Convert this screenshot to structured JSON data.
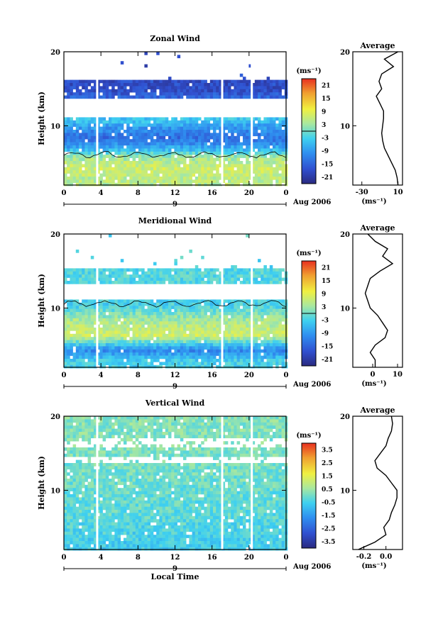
{
  "chart_data": [
    {
      "type": "heatmap",
      "title": "Zonal Wind",
      "ylabel": "Height (km)",
      "xlabel": "",
      "xlim": [
        0,
        24
      ],
      "ylim": [
        2,
        20
      ],
      "x_ticks": [
        "0",
        "4",
        "8",
        "12",
        "16",
        "20",
        "0"
      ],
      "y_ticks": [
        "10",
        "20"
      ],
      "date_ticks": [
        "9"
      ],
      "date_label": "Aug 2006",
      "colorbar": {
        "unit": "(ms⁻¹)",
        "ticks": [
          "21",
          "15",
          "9",
          "3",
          "-3",
          "-9",
          "-15",
          "-21"
        ],
        "min": -24,
        "max": 24
      },
      "profile_bands": [
        {
          "height": 3.0,
          "value": 5
        },
        {
          "height": 4.5,
          "value": 7
        },
        {
          "height": 6.0,
          "value": 3
        },
        {
          "height": 7.0,
          "value": -6
        },
        {
          "height": 8.5,
          "value": -14
        },
        {
          "height": 10.0,
          "value": -9
        },
        {
          "height": 11.0,
          "value": -4
        },
        {
          "height": 15.0,
          "value": -18
        }
      ],
      "average": {
        "title": "Average",
        "xlabel": "(ms⁻¹)",
        "x_ticks": [
          "-30",
          "10"
        ],
        "xlim": [
          -40,
          15
        ],
        "heights": [
          2,
          3,
          4,
          5,
          6,
          7,
          8,
          9,
          10,
          11,
          12,
          13,
          14,
          15,
          16,
          17,
          18,
          19,
          20
        ],
        "values": [
          10,
          9,
          7,
          3,
          -1,
          -5,
          -7,
          -8,
          -7,
          -6,
          -6,
          -10,
          -14,
          -8,
          -11,
          -8,
          5,
          -5,
          10
        ]
      }
    },
    {
      "type": "heatmap",
      "title": "Meridional Wind",
      "ylabel": "Height (km)",
      "xlabel": "",
      "xlim": [
        0,
        24
      ],
      "ylim": [
        2,
        20
      ],
      "x_ticks": [
        "0",
        "4",
        "8",
        "12",
        "16",
        "20",
        "0"
      ],
      "y_ticks": [
        "10",
        "20"
      ],
      "date_ticks": [
        "9"
      ],
      "date_label": "Aug 2006",
      "colorbar": {
        "unit": "(ms⁻¹)",
        "ticks": [
          "21",
          "15",
          "9",
          "3",
          "-3",
          "-9",
          "-15",
          "-21"
        ],
        "min": -24,
        "max": 24
      },
      "profile_bands": [
        {
          "height": 3.0,
          "value": -3
        },
        {
          "height": 4.5,
          "value": -11
        },
        {
          "height": 6.5,
          "value": 7
        },
        {
          "height": 8.5,
          "value": 4
        },
        {
          "height": 10.5,
          "value": -3
        },
        {
          "height": 14.0,
          "value": -2
        }
      ],
      "average": {
        "title": "Average",
        "xlabel": "(ms⁻¹)",
        "x_ticks": [
          "0",
          "10"
        ],
        "xlim": [
          -8,
          12
        ],
        "heights": [
          2,
          3,
          4,
          5,
          6,
          7,
          8,
          9,
          10,
          11,
          12,
          13,
          14,
          15,
          16,
          17,
          18,
          19,
          20
        ],
        "values": [
          1,
          1,
          -1,
          1,
          5,
          6,
          4,
          2,
          -1,
          -2,
          -3,
          -2,
          -1,
          3,
          8,
          4,
          6,
          1,
          -2
        ]
      }
    },
    {
      "type": "heatmap",
      "title": "Vertical Wind",
      "ylabel": "Height (km)",
      "xlabel": "Local Time",
      "xlim": [
        0,
        24
      ],
      "ylim": [
        2,
        20
      ],
      "x_ticks": [
        "0",
        "4",
        "8",
        "12",
        "16",
        "20",
        "0"
      ],
      "y_ticks": [
        "10",
        "20"
      ],
      "date_ticks": [
        "9"
      ],
      "date_label": "Aug 2006",
      "colorbar": {
        "unit": "(ms⁻¹)",
        "ticks": [
          "3.5",
          "2.5",
          "1.5",
          "0.5",
          "-0.5",
          "-1.5",
          "-2.5",
          "-3.5"
        ],
        "min": -4,
        "max": 4
      },
      "profile_bands": [
        {
          "height": 3.0,
          "value": -0.6
        },
        {
          "height": 5.0,
          "value": -0.4
        },
        {
          "height": 7.0,
          "value": -0.2
        },
        {
          "height": 10.0,
          "value": -0.1
        },
        {
          "height": 14.0,
          "value": 0.1
        },
        {
          "height": 18.0,
          "value": 0.2
        }
      ],
      "average": {
        "title": "Average",
        "xlabel": "(ms⁻¹)",
        "x_ticks": [
          "-0.2",
          "0.0"
        ],
        "xlim": [
          -0.3,
          0.15
        ],
        "heights": [
          2,
          3,
          4,
          5,
          6,
          7,
          8,
          9,
          10,
          11,
          12,
          13,
          14,
          15,
          16,
          17,
          18,
          19,
          20
        ],
        "values": [
          -0.25,
          -0.1,
          0.0,
          -0.02,
          0.03,
          0.05,
          0.08,
          0.1,
          0.1,
          0.05,
          0.0,
          -0.08,
          -0.1,
          -0.05,
          0.0,
          0.02,
          0.05,
          0.06,
          0.05
        ]
      }
    }
  ]
}
